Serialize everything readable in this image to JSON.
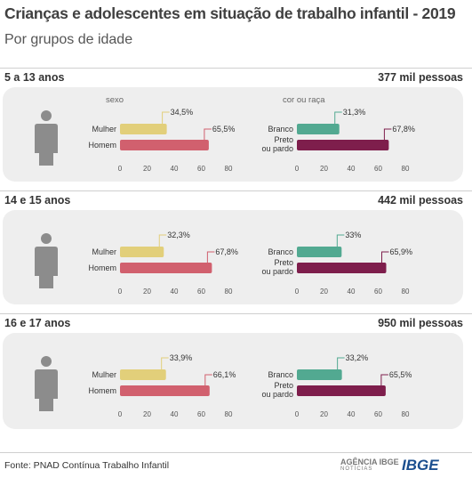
{
  "title": "Crianças e adolescentes em situação de trabalho infantil - 2019",
  "subtitle": "Por grupos de idade",
  "source": "Fonte: PNAD Contínua Trabalho Infantil",
  "agency": {
    "name": "AGÊNCIA IBGE",
    "sub": "NOTÍCIAS"
  },
  "brand": "IBGE",
  "colors": {
    "mulher": "#e2cf7a",
    "homem": "#d1606e",
    "branco": "#52a991",
    "preto": "#7e1e4c",
    "panel": "#eeeeee",
    "person": "#8c8c8c"
  },
  "chart_data": {
    "type": "bar",
    "orientation": "horizontal",
    "xlim": [
      0,
      80
    ],
    "xticks": [
      0,
      20,
      40,
      60,
      80
    ],
    "groups": [
      {
        "label": "5 a 13 anos",
        "count": "377 mil pessoas",
        "sexo": {
          "title": "sexo",
          "categories": [
            "Mulher",
            "Homem"
          ],
          "values": [
            34.5,
            65.5
          ],
          "labels": [
            "34,5%",
            "65,5%"
          ]
        },
        "cor": {
          "title": "cor ou raça",
          "categories": [
            "Branco",
            "Preto ou pardo"
          ],
          "values": [
            31.3,
            67.8
          ],
          "labels": [
            "31,3%",
            "67,8%"
          ]
        }
      },
      {
        "label": "14 e 15 anos",
        "count": "442 mil pessoas",
        "sexo": {
          "categories": [
            "Mulher",
            "Homem"
          ],
          "values": [
            32.3,
            67.8
          ],
          "labels": [
            "32,3%",
            "67,8%"
          ]
        },
        "cor": {
          "categories": [
            "Branco",
            "Preto ou pardo"
          ],
          "values": [
            33,
            65.9
          ],
          "labels": [
            "33%",
            "65,9%"
          ]
        }
      },
      {
        "label": "16 e 17 anos",
        "count": "950 mil pessoas",
        "sexo": {
          "categories": [
            "Mulher",
            "Homem"
          ],
          "values": [
            33.9,
            66.1
          ],
          "labels": [
            "33,9%",
            "66,1%"
          ]
        },
        "cor": {
          "categories": [
            "Branco",
            "Preto ou pardo"
          ],
          "values": [
            33.2,
            65.5
          ],
          "labels": [
            "33,2%",
            "65,5%"
          ]
        }
      }
    ]
  }
}
